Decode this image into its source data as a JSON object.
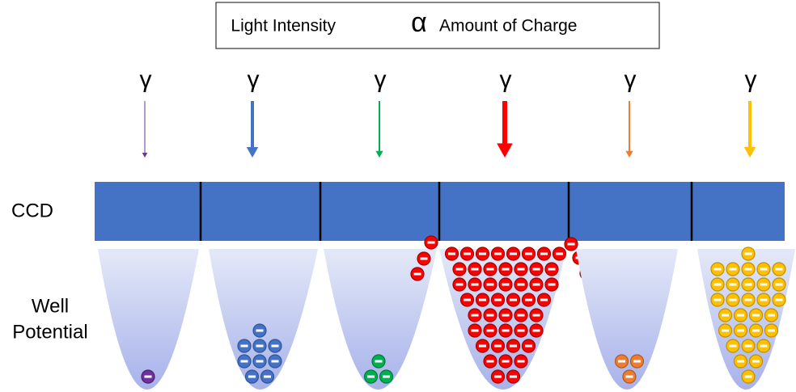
{
  "title": {
    "left": "Light Intensity",
    "symbol": "α",
    "right": "Amount of Charge"
  },
  "photons": [
    "γ",
    "γ",
    "γ",
    "γ",
    "γ",
    "γ"
  ],
  "ccd_label": "CCD",
  "well_label": [
    "Well",
    "Potential"
  ]
}
